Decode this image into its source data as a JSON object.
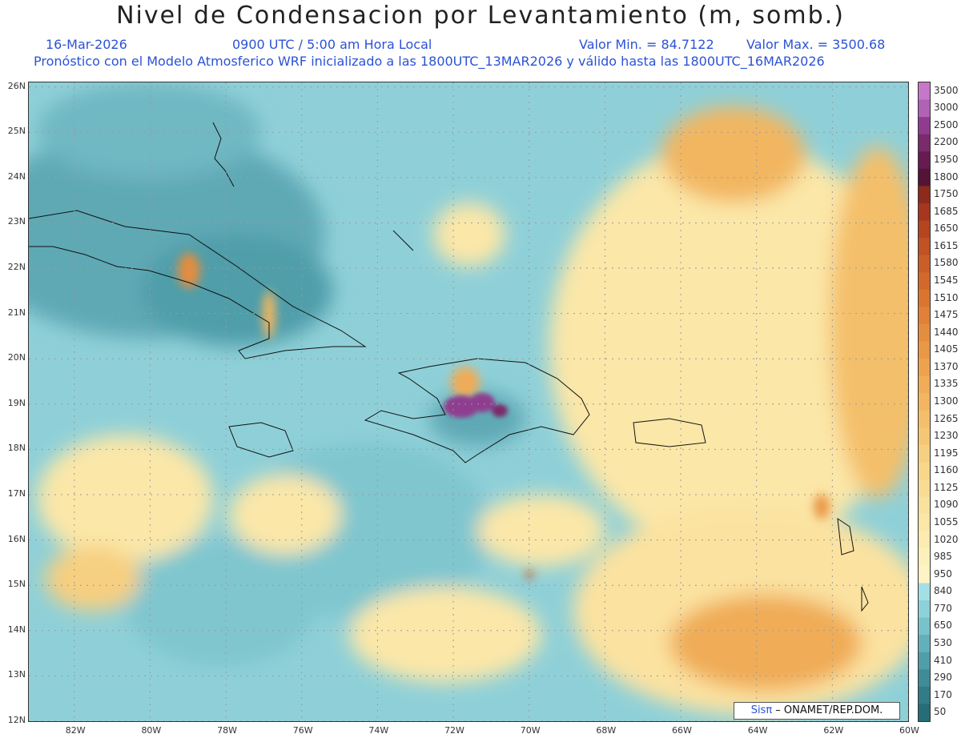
{
  "title": "Nivel de Condensacion por Levantamiento (m, somb.)",
  "header": {
    "date": "16-Mar-2026",
    "time": "0900 UTC / 5:00 am Hora Local",
    "vmin": "Valor Min. = 84.7122",
    "vmax": "Valor Max. = 3500.68",
    "forecast": "Pronóstico con el Modelo Atmosferico WRF inicializado a las 1800UTC_13MAR2026 y válido hasta las  1800UTC_16MAR2026"
  },
  "map": {
    "lon_range": [
      -83.2,
      -60
    ],
    "lat_range": [
      12,
      26.1
    ],
    "lat_labels": [
      "26N",
      "25N",
      "24N",
      "23N",
      "22N",
      "21N",
      "20N",
      "19N",
      "18N",
      "17N",
      "16N",
      "15N",
      "14N",
      "13N",
      "12N"
    ],
    "lat_values": [
      26,
      25,
      24,
      23,
      22,
      21,
      20,
      19,
      18,
      17,
      16,
      15,
      14,
      13,
      12
    ],
    "lon_labels": [
      "82W",
      "80W",
      "78W",
      "76W",
      "74W",
      "72W",
      "70W",
      "68W",
      "66W",
      "64W",
      "62W",
      "60W"
    ],
    "lon_values": [
      -82,
      -80,
      -78,
      -76,
      -74,
      -72,
      -70,
      -68,
      -66,
      -64,
      -62,
      -60
    ],
    "gridlines": true
  },
  "colorbar": {
    "levels": [
      "3500",
      "3000",
      "2500",
      "2200",
      "1950",
      "1800",
      "1750",
      "1685",
      "1650",
      "1615",
      "1580",
      "1545",
      "1510",
      "1475",
      "1440",
      "1405",
      "1370",
      "1335",
      "1300",
      "1265",
      "1230",
      "1195",
      "1160",
      "1125",
      "1090",
      "1055",
      "1020",
      "985",
      "950",
      "840",
      "770",
      "650",
      "530",
      "410",
      "290",
      "170",
      "50"
    ],
    "colors": [
      "#c678c8",
      "#b062b6",
      "#8f3c8f",
      "#7a2b6b",
      "#661c52",
      "#541436",
      "#8e2a1c",
      "#a6361e",
      "#b5451f",
      "#c05224",
      "#c95e27",
      "#d2692b",
      "#da7530",
      "#e08137",
      "#e58d3e",
      "#e99846",
      "#eda24e",
      "#f0ac56",
      "#f2b660",
      "#f4bf6a",
      "#f5c774",
      "#f7cf80",
      "#f8d68a",
      "#f9dc94",
      "#fae29e",
      "#fbe7a8",
      "#fcecb2",
      "#fdf0bc",
      "#fdf3c4",
      "#a2e0e6",
      "#8dd2da",
      "#78c2cc",
      "#62b0bc",
      "#4f9eaa",
      "#3f8c99",
      "#317c88",
      "#256d79"
    ]
  },
  "credit": {
    "sis": "Sisπ",
    "rest": " – ONAMET/REP.DOM."
  }
}
